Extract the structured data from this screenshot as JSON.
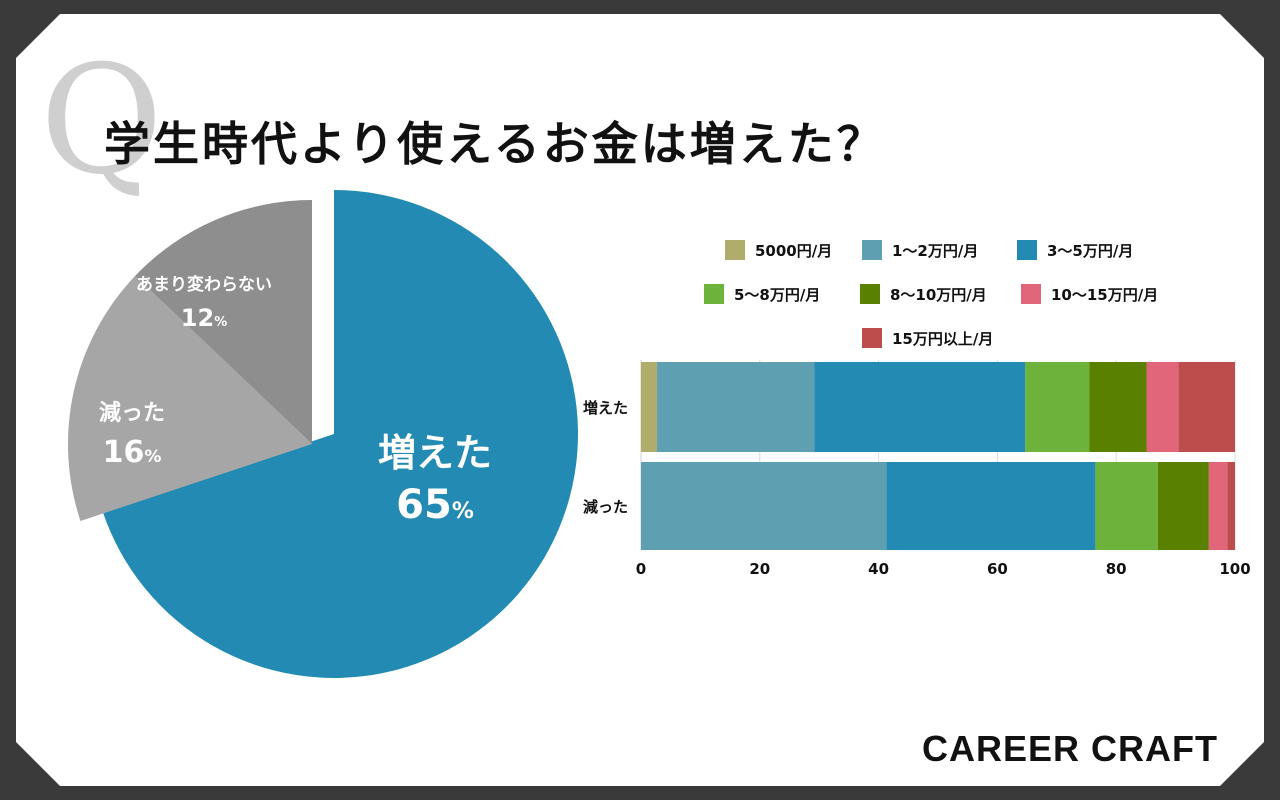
{
  "title": "学生時代より使えるお金は増えた？",
  "q_mark": "Q",
  "logo": "CAREER CRAFT",
  "chart_data": [
    {
      "type": "pie",
      "slices": [
        {
          "label": "増えた",
          "value": 65,
          "display": "65",
          "color": "#238bb3"
        },
        {
          "label": "減った",
          "value": 16,
          "display": "16",
          "color": "#a6a6a6"
        },
        {
          "label": "あまり変わらない",
          "value": 12,
          "display": "12",
          "color": "#8e8e8e"
        }
      ],
      "unit": "%"
    },
    {
      "type": "bar",
      "orientation": "horizontal",
      "stacked": true,
      "categories": [
        "増えた",
        "減った"
      ],
      "series": [
        {
          "name": "5000円/月",
          "color": "#b0ac6c",
          "values": [
            2.7,
            0
          ]
        },
        {
          "name": "1〜2万円/月",
          "color": "#5f9fb2",
          "values": [
            26.5,
            41.3
          ]
        },
        {
          "name": "3〜5万円/月",
          "color": "#228ab3",
          "values": [
            35.5,
            35.2
          ]
        },
        {
          "name": "5〜8万円/月",
          "color": "#6db33b",
          "values": [
            10.8,
            10.5
          ]
        },
        {
          "name": "8〜10万円/月",
          "color": "#5a8000",
          "values": [
            9.6,
            8.6
          ]
        },
        {
          "name": "10〜15万円/月",
          "color": "#e2667a",
          "values": [
            5.4,
            3.1
          ]
        },
        {
          "name": "15万円以上/月",
          "color": "#bd4c4c",
          "values": [
            9.5,
            1.3
          ]
        }
      ],
      "xlim": [
        0,
        100
      ],
      "xticks": [
        "0",
        "20",
        "40",
        "60",
        "80",
        "100"
      ],
      "grid": true,
      "legend": "top"
    }
  ]
}
